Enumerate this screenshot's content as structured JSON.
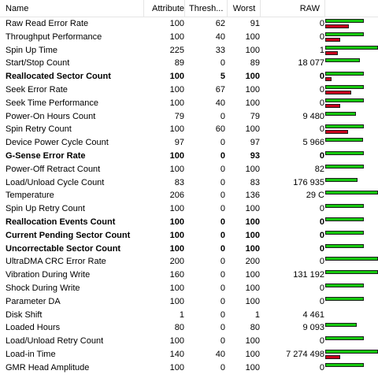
{
  "colors": {
    "good": "#16c80f",
    "threshold": "#c8001e"
  },
  "columns": {
    "name": "Name",
    "attribute": "Attribute",
    "threshold": "Thresh...",
    "worst": "Worst",
    "raw": "RAW"
  },
  "rows": [
    {
      "name": "Raw Read Error Rate",
      "attribute": "100",
      "threshold": "62",
      "worst": "91",
      "raw": "0",
      "bold": false,
      "good": 0.73,
      "thr": 0.45
    },
    {
      "name": "Throughput Performance",
      "attribute": "100",
      "threshold": "40",
      "worst": "100",
      "raw": "0",
      "bold": false,
      "good": 0.73,
      "thr": 0.29
    },
    {
      "name": "Spin Up Time",
      "attribute": "225",
      "threshold": "33",
      "worst": "100",
      "raw": "1",
      "bold": false,
      "good": 1.0,
      "thr": 0.24
    },
    {
      "name": "Start/Stop Count",
      "attribute": "89",
      "threshold": "0",
      "worst": "89",
      "raw": "18 077",
      "bold": false,
      "good": 0.65,
      "thr": 0
    },
    {
      "name": "Reallocated Sector Count",
      "attribute": "100",
      "threshold": "5",
      "worst": "100",
      "raw": "0",
      "bold": true,
      "good": 0.73,
      "thr": 0.04
    },
    {
      "name": "Seek Error Rate",
      "attribute": "100",
      "threshold": "67",
      "worst": "100",
      "raw": "0",
      "bold": false,
      "good": 0.73,
      "thr": 0.49
    },
    {
      "name": "Seek Time Performance",
      "attribute": "100",
      "threshold": "40",
      "worst": "100",
      "raw": "0",
      "bold": false,
      "good": 0.73,
      "thr": 0.29
    },
    {
      "name": "Power-On Hours Count",
      "attribute": "79",
      "threshold": "0",
      "worst": "79",
      "raw": "9 480",
      "bold": false,
      "good": 0.58,
      "thr": 0
    },
    {
      "name": "Spin Retry Count",
      "attribute": "100",
      "threshold": "60",
      "worst": "100",
      "raw": "0",
      "bold": false,
      "good": 0.73,
      "thr": 0.44
    },
    {
      "name": "Device Power Cycle Count",
      "attribute": "97",
      "threshold": "0",
      "worst": "97",
      "raw": "5 966",
      "bold": false,
      "good": 0.71,
      "thr": 0
    },
    {
      "name": "G-Sense Error Rate",
      "attribute": "100",
      "threshold": "0",
      "worst": "93",
      "raw": "0",
      "bold": true,
      "good": 0.73,
      "thr": 0
    },
    {
      "name": "Power-Off Retract Count",
      "attribute": "100",
      "threshold": "0",
      "worst": "100",
      "raw": "82",
      "bold": false,
      "good": 0.73,
      "thr": 0
    },
    {
      "name": "Load/Unload Cycle Count",
      "attribute": "83",
      "threshold": "0",
      "worst": "83",
      "raw": "176 935",
      "bold": false,
      "good": 0.61,
      "thr": 0
    },
    {
      "name": "Temperature",
      "attribute": "206",
      "threshold": "0",
      "worst": "136",
      "raw": "29 C",
      "bold": false,
      "good": 1.0,
      "thr": 0
    },
    {
      "name": "Spin Up Retry Count",
      "attribute": "100",
      "threshold": "0",
      "worst": "100",
      "raw": "0",
      "bold": false,
      "good": 0.73,
      "thr": 0
    },
    {
      "name": "Reallocation Events Count",
      "attribute": "100",
      "threshold": "0",
      "worst": "100",
      "raw": "0",
      "bold": true,
      "good": 0.73,
      "thr": 0
    },
    {
      "name": "Current Pending Sector Count",
      "attribute": "100",
      "threshold": "0",
      "worst": "100",
      "raw": "0",
      "bold": true,
      "good": 0.73,
      "thr": 0
    },
    {
      "name": "Uncorrectable Sector Count",
      "attribute": "100",
      "threshold": "0",
      "worst": "100",
      "raw": "0",
      "bold": true,
      "good": 0.73,
      "thr": 0
    },
    {
      "name": "UltraDMA CRC Error Rate",
      "attribute": "200",
      "threshold": "0",
      "worst": "200",
      "raw": "0",
      "bold": false,
      "good": 1.0,
      "thr": 0
    },
    {
      "name": "Vibration During Write",
      "attribute": "160",
      "threshold": "0",
      "worst": "100",
      "raw": "131 192",
      "bold": false,
      "good": 1.0,
      "thr": 0
    },
    {
      "name": "Shock During Write",
      "attribute": "100",
      "threshold": "0",
      "worst": "100",
      "raw": "0",
      "bold": false,
      "good": 0.73,
      "thr": 0
    },
    {
      "name": "Parameter DA",
      "attribute": "100",
      "threshold": "0",
      "worst": "100",
      "raw": "0",
      "bold": false,
      "good": 0.73,
      "thr": 0
    },
    {
      "name": "Disk Shift",
      "attribute": "1",
      "threshold": "0",
      "worst": "1",
      "raw": "4 461",
      "bold": false,
      "good": 0.0,
      "thr": 0
    },
    {
      "name": "Loaded Hours",
      "attribute": "80",
      "threshold": "0",
      "worst": "80",
      "raw": "9 093",
      "bold": false,
      "good": 0.59,
      "thr": 0
    },
    {
      "name": "Load/Unload Retry Count",
      "attribute": "100",
      "threshold": "0",
      "worst": "100",
      "raw": "0",
      "bold": false,
      "good": 0.73,
      "thr": 0
    },
    {
      "name": "Load-in Time",
      "attribute": "140",
      "threshold": "40",
      "worst": "100",
      "raw": "7 274 498",
      "bold": false,
      "good": 1.0,
      "thr": 0.29
    },
    {
      "name": "GMR Head Amplitude",
      "attribute": "100",
      "threshold": "0",
      "worst": "100",
      "raw": "0",
      "bold": false,
      "good": 0.73,
      "thr": 0
    }
  ]
}
